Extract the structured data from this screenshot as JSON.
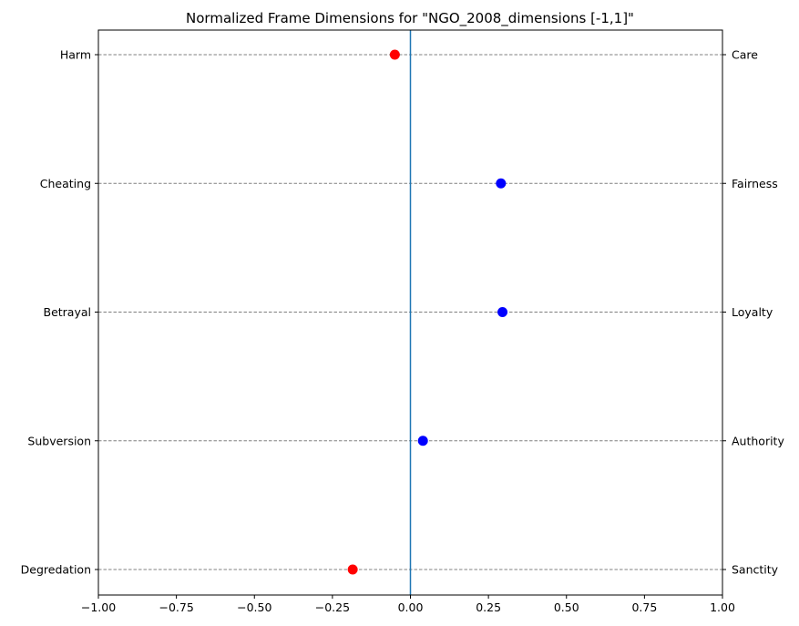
{
  "chart_data": {
    "type": "scatter",
    "title": "Normalized Frame Dimensions for \"NGO_2008_dimensions [-1,1]\"",
    "xlim": [
      -1.0,
      1.0
    ],
    "x_ticks": [
      -1.0,
      -0.75,
      -0.5,
      -0.25,
      0.0,
      0.25,
      0.5,
      0.75,
      1.0
    ],
    "x_tick_labels": [
      "−1.00",
      "−0.75",
      "−0.50",
      "−0.25",
      "0.00",
      "0.25",
      "0.50",
      "0.75",
      "1.00"
    ],
    "left_labels": [
      "Harm",
      "Cheating",
      "Betrayal",
      "Subversion",
      "Degredation"
    ],
    "right_labels": [
      "Care",
      "Fairness",
      "Loyalty",
      "Authority",
      "Sanctity"
    ],
    "values": [
      -0.05,
      0.29,
      0.295,
      0.04,
      -0.185
    ],
    "reference_line_x": 0,
    "grid": "horizontal dashed",
    "colors": {
      "negative": "#ff0000",
      "positive": "#0000ff",
      "reference_line": "#1f77b4",
      "grid": "#808080"
    }
  }
}
